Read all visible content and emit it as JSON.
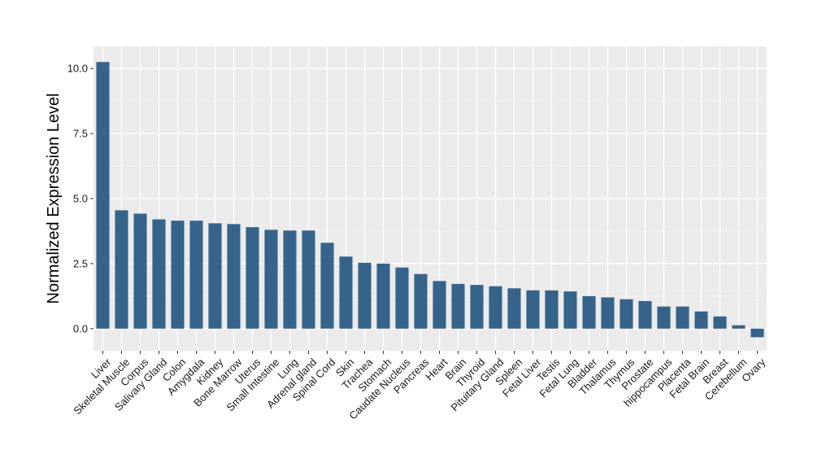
{
  "chart_data": {
    "type": "bar",
    "ylabel": "Normalized Expression Level",
    "xlabel": "",
    "ylim": [
      -0.85,
      10.85
    ],
    "yticks": [
      0.0,
      2.5,
      5.0,
      7.5,
      10.0
    ],
    "ytick_labels": [
      "0.0",
      "2.5",
      "5.0",
      "7.5",
      "10.0"
    ],
    "grid": true,
    "bar_color": "#35638a",
    "panel_color": "#ebebeb",
    "categories": [
      "Liver",
      "Skeletal Muscle",
      "Corpus",
      "Salivary Gland",
      "Colon",
      "Amygdala",
      "Kidney",
      "Bone Marrow",
      "Uterus",
      "Small Intestine",
      "Lung",
      "Adrenal gland",
      "Spinal Cord",
      "Skin",
      "Trachea",
      "Stomach",
      "Caudate Nucleus",
      "Pancreas",
      "Heart",
      "Brain",
      "Thyroid",
      "Pituitary Gland",
      "Spleen",
      "Fetal Liver",
      "Testis",
      "Fetal Lung",
      "Bladder",
      "Thalamus",
      "Thymus",
      "Prostate",
      "hippocampus",
      "Placenta",
      "Fetal Brain",
      "Breast",
      "Cerebellum",
      "Ovary"
    ],
    "values": [
      10.25,
      4.55,
      4.42,
      4.2,
      4.15,
      4.15,
      4.05,
      4.02,
      3.9,
      3.8,
      3.77,
      3.77,
      3.3,
      2.77,
      2.53,
      2.5,
      2.35,
      2.1,
      1.83,
      1.72,
      1.68,
      1.63,
      1.55,
      1.47,
      1.47,
      1.43,
      1.25,
      1.2,
      1.13,
      1.06,
      0.85,
      0.85,
      0.66,
      0.47,
      0.13,
      -0.33
    ]
  }
}
